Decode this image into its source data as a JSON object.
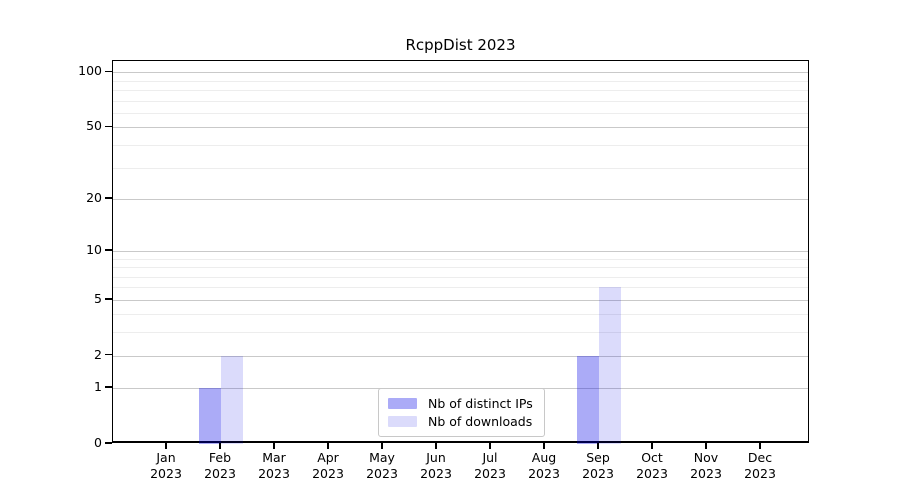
{
  "chart_data": {
    "type": "bar",
    "title": "RcppDist 2023",
    "categories": [
      "Jan",
      "Feb",
      "Mar",
      "Apr",
      "May",
      "Jun",
      "Jul",
      "Aug",
      "Sep",
      "Oct",
      "Nov",
      "Dec"
    ],
    "year": "2023",
    "series": [
      {
        "name": "Nb of distinct IPs",
        "color": "#0000E654",
        "values": [
          0,
          1,
          0,
          0,
          0,
          0,
          0,
          0,
          2,
          0,
          0,
          0
        ]
      },
      {
        "name": "Nb of downloads",
        "color": "#0000E624",
        "values": [
          0,
          2,
          0,
          0,
          0,
          0,
          0,
          0,
          6,
          0,
          0,
          0
        ]
      }
    ],
    "y_scale": "log1p",
    "ylim": [
      0,
      100
    ],
    "y_ticks": [
      0,
      1,
      2,
      5,
      10,
      20,
      50,
      100
    ],
    "y_tick_labels": [
      "0",
      "1",
      "2",
      "5",
      "10",
      "20",
      "50",
      "100"
    ],
    "y_minor_ticks": [
      3,
      4,
      6,
      7,
      8,
      9,
      30,
      40,
      60,
      70,
      80,
      90
    ],
    "grid": "on",
    "legend_position": "inside lower center",
    "colors": {
      "major_grid": "#c9c9c9",
      "minor_grid": "#ededed",
      "axis": "#000000",
      "background": "#ffffff",
      "text": "#000000"
    }
  }
}
